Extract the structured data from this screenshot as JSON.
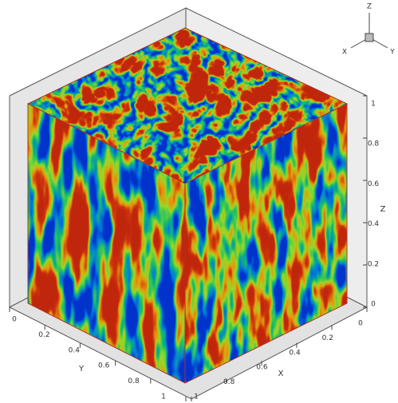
{
  "axes": {
    "x": {
      "label": "X",
      "ticks": [
        0,
        0.2,
        0.4,
        0.6,
        0.8,
        1
      ]
    },
    "y": {
      "label": "Y",
      "ticks": [
        0,
        0.2,
        0.4,
        0.6,
        0.8,
        1
      ]
    },
    "z": {
      "label": "Z",
      "ticks": [
        0,
        0.2,
        0.4,
        0.6,
        0.8,
        1
      ]
    }
  },
  "triad": {
    "z": "Z",
    "x": "X",
    "y": "Y"
  }
}
